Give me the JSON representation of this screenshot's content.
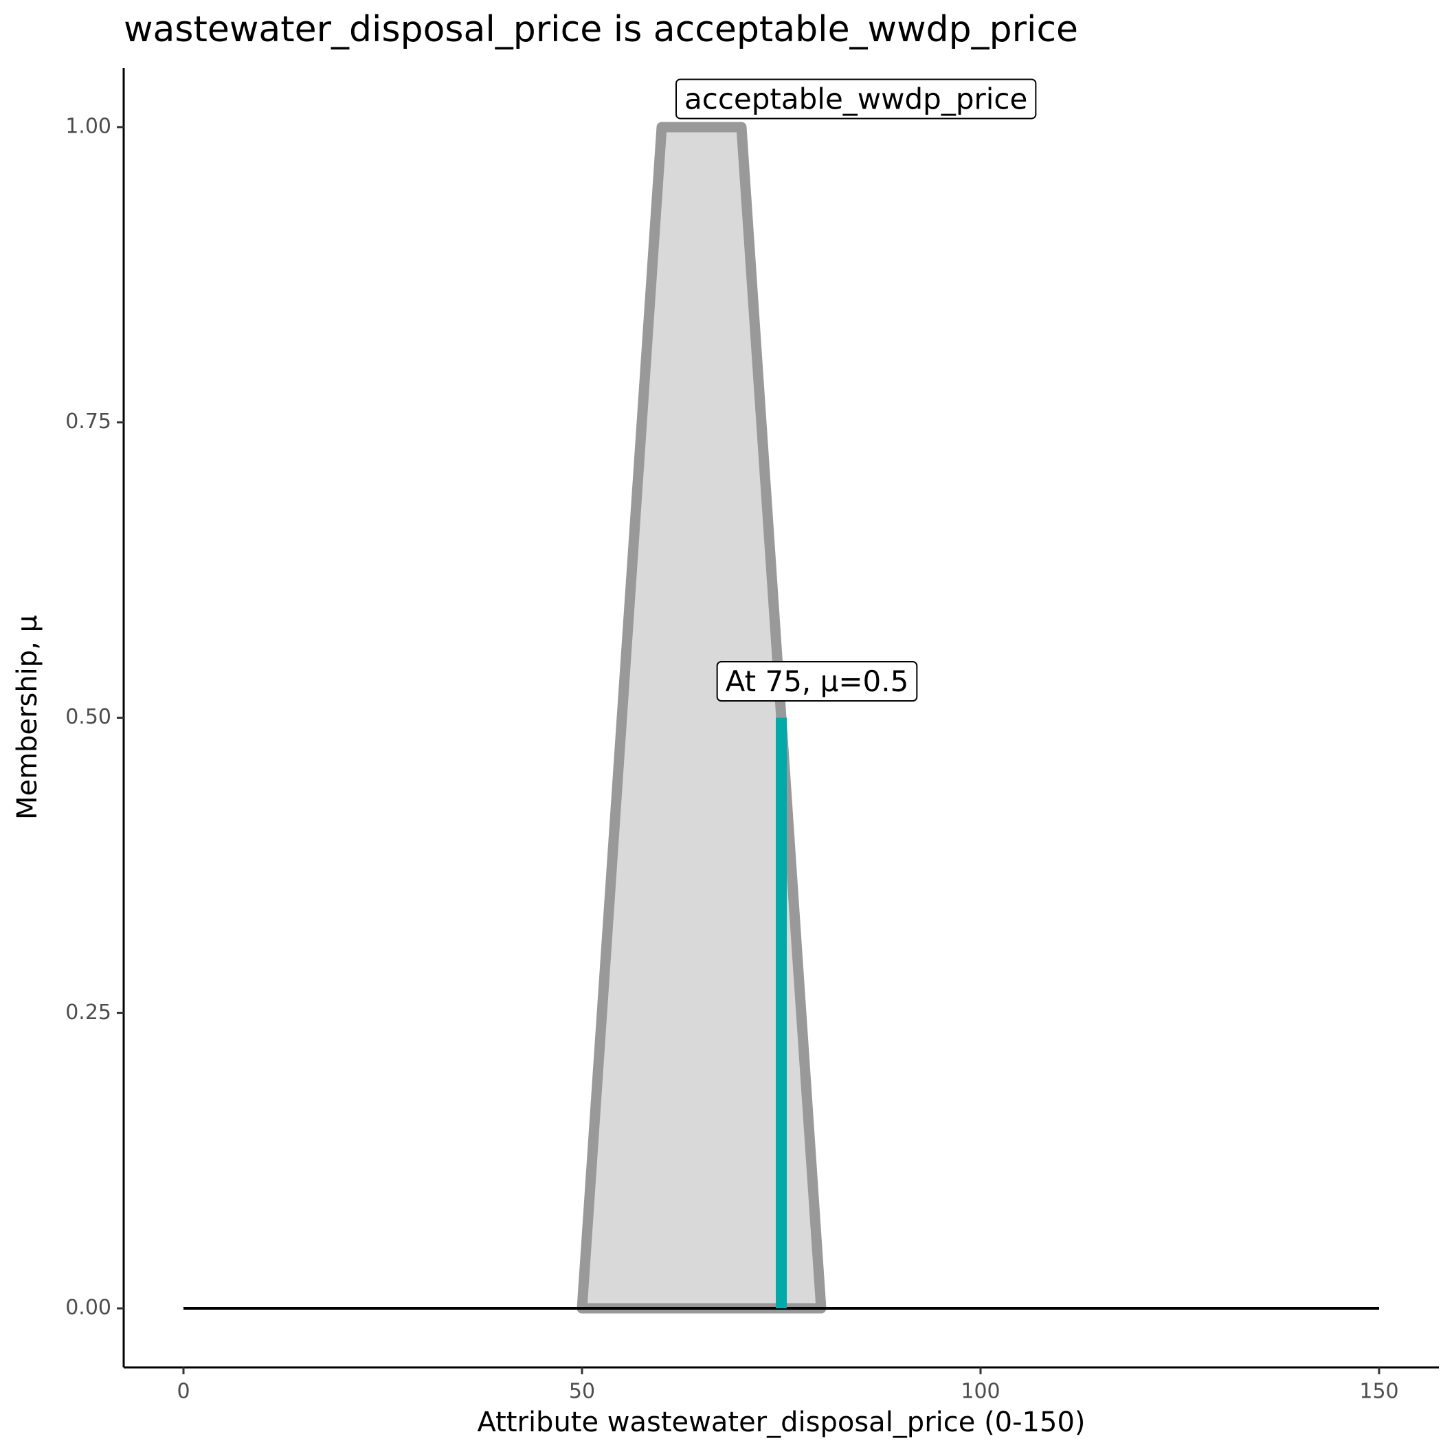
{
  "chart_data": {
    "type": "line",
    "title": "wastewater_disposal_price is acceptable_wwdp_price",
    "x_label": "Attribute wastewater_disposal_price (0-150)",
    "y_label": "Membership, μ",
    "series": [
      {
        "name": "acceptable_wwdp_price",
        "color": "#999999",
        "fill": "#d9d9d9",
        "x": [
          50,
          60,
          70,
          80
        ],
        "values": [
          0,
          1,
          1,
          0
        ]
      },
      {
        "color": "#000000",
        "x": [
          0,
          150
        ],
        "values": [
          0,
          0
        ]
      },
      {
        "color": "#00aaa8",
        "x": [
          75,
          75
        ],
        "values": [
          0,
          0.5
        ]
      }
    ],
    "annotations": [
      {
        "text": "At 75, μ=0.5"
      }
    ],
    "xlim": [
      -7.5,
      157.5
    ],
    "xticks": [
      0,
      50,
      100,
      150
    ],
    "ylim": [
      -0.05,
      1.05
    ],
    "yticks": [
      {
        "value": 0,
        "label": "0.00"
      },
      {
        "value": 0.25,
        "label": "0.25"
      },
      {
        "value": 0.5,
        "label": "0.50"
      },
      {
        "value": 0.75,
        "label": "0.75"
      },
      {
        "value": 1,
        "label": "1.00"
      }
    ],
    "grid": false
  }
}
